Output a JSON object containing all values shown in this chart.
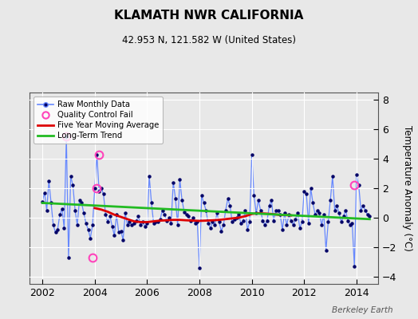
{
  "title": "KLAMATH NWR CALIFORNIA",
  "subtitle": "42.953 N, 121.582 W (United States)",
  "ylabel": "Temperature Anomaly (°C)",
  "watermark": "Berkeley Earth",
  "xlim": [
    2001.5,
    2014.83
  ],
  "ylim": [
    -4.5,
    8.5
  ],
  "yticks": [
    -4,
    -2,
    0,
    2,
    4,
    6,
    8
  ],
  "xticks": [
    2002,
    2004,
    2006,
    2008,
    2010,
    2012,
    2014
  ],
  "bg_color": "#e8e8e8",
  "raw_color": "#6688ff",
  "dot_color": "#000066",
  "qc_color": "#ff44bb",
  "ma_color": "#dd0000",
  "trend_color": "#22bb22",
  "raw_x": [
    2002.0,
    2002.083,
    2002.167,
    2002.25,
    2002.333,
    2002.417,
    2002.5,
    2002.583,
    2002.667,
    2002.75,
    2002.833,
    2002.917,
    2003.0,
    2003.083,
    2003.167,
    2003.25,
    2003.333,
    2003.417,
    2003.5,
    2003.583,
    2003.667,
    2003.75,
    2003.833,
    2003.917,
    2004.0,
    2004.083,
    2004.167,
    2004.25,
    2004.333,
    2004.417,
    2004.5,
    2004.583,
    2004.667,
    2004.75,
    2004.833,
    2004.917,
    2005.0,
    2005.083,
    2005.167,
    2005.25,
    2005.333,
    2005.417,
    2005.5,
    2005.583,
    2005.667,
    2005.75,
    2005.833,
    2005.917,
    2006.0,
    2006.083,
    2006.167,
    2006.25,
    2006.333,
    2006.417,
    2006.5,
    2006.583,
    2006.667,
    2006.75,
    2006.833,
    2006.917,
    2007.0,
    2007.083,
    2007.167,
    2007.25,
    2007.333,
    2007.417,
    2007.5,
    2007.583,
    2007.667,
    2007.75,
    2007.833,
    2007.917,
    2008.0,
    2008.083,
    2008.167,
    2008.25,
    2008.333,
    2008.417,
    2008.5,
    2008.583,
    2008.667,
    2008.75,
    2008.833,
    2008.917,
    2009.0,
    2009.083,
    2009.167,
    2009.25,
    2009.333,
    2009.417,
    2009.5,
    2009.583,
    2009.667,
    2009.75,
    2009.833,
    2009.917,
    2010.0,
    2010.083,
    2010.167,
    2010.25,
    2010.333,
    2010.417,
    2010.5,
    2010.583,
    2010.667,
    2010.75,
    2010.833,
    2010.917,
    2011.0,
    2011.083,
    2011.167,
    2011.25,
    2011.333,
    2011.417,
    2011.5,
    2011.583,
    2011.667,
    2011.75,
    2011.833,
    2011.917,
    2012.0,
    2012.083,
    2012.167,
    2012.25,
    2012.333,
    2012.417,
    2012.5,
    2012.583,
    2012.667,
    2012.75,
    2012.833,
    2012.917,
    2013.0,
    2013.083,
    2013.167,
    2013.25,
    2013.333,
    2013.417,
    2013.5,
    2013.583,
    2013.667,
    2013.75,
    2013.833,
    2013.917,
    2014.0,
    2014.083,
    2014.167,
    2014.25,
    2014.333,
    2014.417,
    2014.5
  ],
  "raw_y": [
    1.1,
    1.7,
    0.5,
    2.5,
    1.0,
    -0.5,
    -1.0,
    -0.8,
    0.2,
    0.6,
    -0.7,
    5.5,
    -2.7,
    2.8,
    2.2,
    0.5,
    -0.5,
    1.2,
    1.0,
    0.3,
    -0.4,
    -0.8,
    -1.4,
    -0.5,
    2.0,
    4.3,
    1.8,
    2.0,
    1.6,
    0.2,
    -0.3,
    0.1,
    -0.6,
    -1.2,
    0.2,
    -1.0,
    -0.9,
    -1.5,
    0.3,
    -0.5,
    -0.3,
    -0.5,
    -0.4,
    -0.2,
    0.1,
    -0.5,
    -0.3,
    -0.6,
    -0.4,
    2.8,
    1.0,
    -0.4,
    -0.3,
    -0.3,
    -0.1,
    0.5,
    0.2,
    -0.2,
    0.0,
    -0.4,
    2.4,
    1.3,
    -0.5,
    2.6,
    1.2,
    0.4,
    0.2,
    0.1,
    -0.2,
    0.0,
    -0.4,
    -0.3,
    -3.4,
    1.5,
    1.0,
    0.5,
    -0.4,
    -0.7,
    -0.3,
    -0.5,
    0.3,
    -0.3,
    -0.9,
    -0.5,
    0.5,
    1.3,
    0.8,
    -0.3,
    -0.1,
    0.0,
    0.2,
    -0.4,
    -0.2,
    0.5,
    -0.8,
    -0.3,
    4.3,
    1.5,
    0.3,
    1.2,
    0.5,
    -0.2,
    -0.5,
    -0.2,
    0.8,
    1.2,
    -0.2,
    0.5,
    0.5,
    0.2,
    -0.8,
    0.3,
    -0.5,
    0.2,
    -0.2,
    -0.5,
    -0.1,
    0.3,
    -0.7,
    -0.3,
    1.8,
    1.6,
    -0.4,
    2.0,
    1.0,
    0.2,
    0.5,
    0.3,
    -0.5,
    0.2,
    -2.2,
    -0.3,
    1.2,
    2.8,
    0.5,
    0.8,
    0.3,
    -0.3,
    0.1,
    0.5,
    -0.2,
    -0.5,
    -0.4,
    -3.3,
    2.9,
    2.2,
    0.5,
    0.8,
    0.5,
    0.2,
    0.1
  ],
  "qc_x": [
    2002.917,
    2003.917,
    2004.083,
    2004.167,
    2013.917
  ],
  "qc_y": [
    5.5,
    -2.7,
    2.0,
    4.3,
    2.2
  ],
  "ma_x": [
    2004.0,
    2004.25,
    2004.5,
    2004.75,
    2005.0,
    2005.25,
    2005.5,
    2005.75,
    2006.0,
    2006.25,
    2006.5,
    2006.75,
    2007.0,
    2007.25,
    2007.5,
    2007.75,
    2008.0,
    2008.25,
    2008.5,
    2008.75,
    2009.0,
    2009.25,
    2009.5,
    2009.75,
    2010.0,
    2010.25,
    2010.5,
    2010.75,
    2011.0,
    2011.25,
    2011.5
  ],
  "ma_y": [
    0.65,
    0.55,
    0.4,
    0.2,
    0.05,
    -0.1,
    -0.25,
    -0.3,
    -0.3,
    -0.25,
    -0.2,
    -0.18,
    -0.15,
    -0.15,
    -0.18,
    -0.2,
    -0.22,
    -0.2,
    -0.18,
    -0.15,
    -0.1,
    -0.05,
    0.0,
    0.1,
    0.25,
    0.3,
    0.28,
    0.25,
    0.2,
    0.18,
    0.15
  ],
  "trend_x": [
    2002.0,
    2014.5
  ],
  "trend_y": [
    1.0,
    -0.1
  ]
}
